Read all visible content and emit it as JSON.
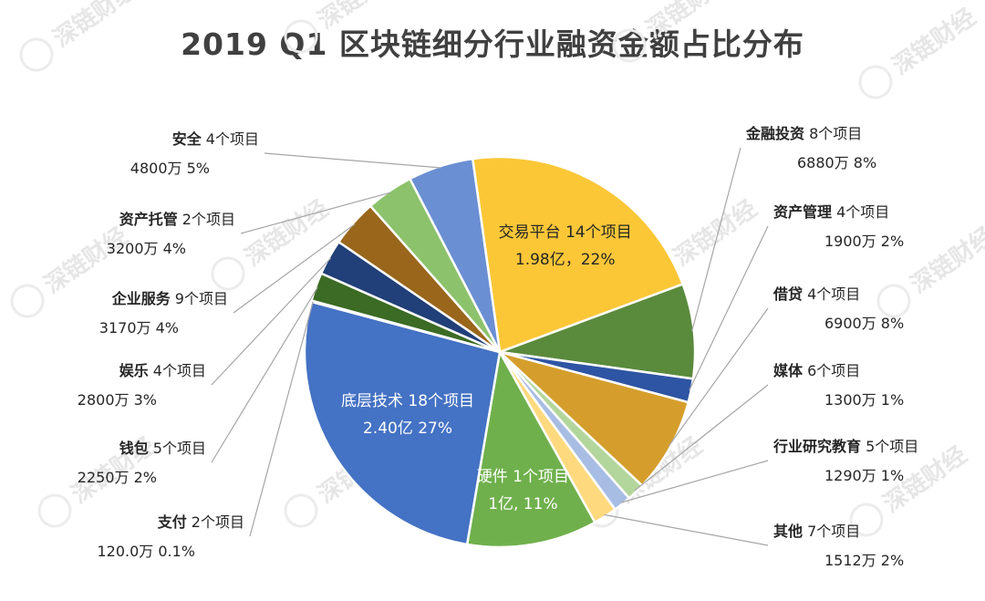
{
  "chart_data": {
    "type": "pie",
    "title": "2019 Q1 区块链细分行业融资金额占比分布",
    "watermark": "深链财经",
    "slices": [
      {
        "name": "交易平台",
        "projects": "14个项目",
        "amount": "1.98亿",
        "percent_label": "22%",
        "value": 22,
        "color": "#fbc737",
        "label_inside": true,
        "in_color": "#262626",
        "in_line2": "1.98亿，22%"
      },
      {
        "name": "金融投资",
        "projects": "8个项目",
        "amount": "6880万",
        "percent_label": "8%",
        "value": 8,
        "color": "#5a8a3c"
      },
      {
        "name": "资产管理",
        "projects": "4个项目",
        "amount": "1900万",
        "percent_label": "2%",
        "value": 2,
        "color": "#2e55a3"
      },
      {
        "name": "借贷",
        "projects": "4个项目",
        "amount": "6900万",
        "percent_label": "8%",
        "value": 8,
        "color": "#d59e2c"
      },
      {
        "name": "媒体",
        "projects": "6个项目",
        "amount": "1300万",
        "percent_label": "1%",
        "value": 1.5,
        "color": "#b3d69c"
      },
      {
        "name": "行业研究教育",
        "projects": "5个项目",
        "amount": "1290万",
        "percent_label": "1%",
        "value": 1.5,
        "color": "#a8bde4"
      },
      {
        "name": "其他",
        "projects": "7个项目",
        "amount": "1512万",
        "percent_label": "2%",
        "value": 2,
        "color": "#fed97e"
      },
      {
        "name": "硬件",
        "projects": "1个项目",
        "amount": "1亿",
        "percent_label": "11%",
        "value": 11,
        "color": "#6fb04c",
        "label_inside": true,
        "in_color": "#ffffff",
        "in_line2": "1亿, 11%"
      },
      {
        "name": "底层技术",
        "projects": "18个项目",
        "amount": "2.40亿",
        "percent_label": "27%",
        "value": 27,
        "color": "#4472c4",
        "label_inside": true,
        "in_color": "#ffffff",
        "in_line2": "2.40亿 27%"
      },
      {
        "name": "支付",
        "projects": "2个项目",
        "amount": "120.0万",
        "percent_label": "0.1%",
        "value": 0.1,
        "color": "#9e480e"
      },
      {
        "name": "钱包",
        "projects": "5个项目",
        "amount": "2250万",
        "percent_label": "2%",
        "value": 2.4,
        "color": "#3b6b24"
      },
      {
        "name": "娱乐",
        "projects": "4个项目",
        "amount": "2800万",
        "percent_label": "3%",
        "value": 3,
        "color": "#213f78"
      },
      {
        "name": "企业服务",
        "projects": "9个项目",
        "amount": "3170万",
        "percent_label": "4%",
        "value": 4,
        "color": "#99661b"
      },
      {
        "name": "资产托管",
        "projects": "2个项目",
        "amount": "3200万",
        "percent_label": "4%",
        "value": 4,
        "color": "#8dc26d"
      },
      {
        "name": "安全",
        "projects": "4个项目",
        "amount": "4800万",
        "percent_label": "5%",
        "value": 5.5,
        "color": "#6b8fd3"
      }
    ]
  }
}
